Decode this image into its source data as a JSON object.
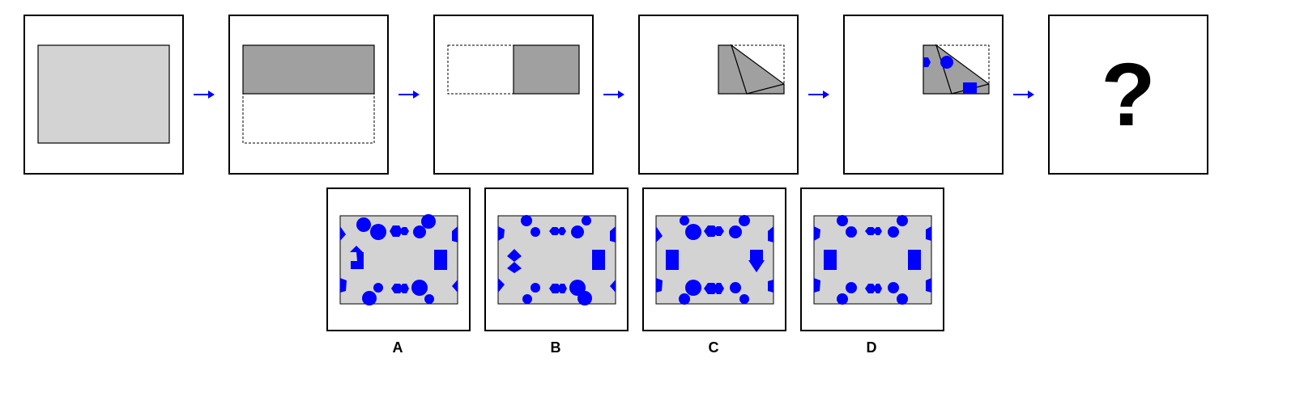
{
  "sequence": {
    "steps": [
      {
        "name": "unfolded-paper"
      },
      {
        "name": "folded-bottom-up"
      },
      {
        "name": "folded-left-to-right"
      },
      {
        "name": "folded-diagonal"
      },
      {
        "name": "punched-holes"
      }
    ],
    "question_mark": "?"
  },
  "options": [
    {
      "label": "A"
    },
    {
      "label": "B"
    },
    {
      "label": "C"
    },
    {
      "label": "D"
    }
  ],
  "colors": {
    "paper_light": "#d3d3d3",
    "paper_dark": "#a0a0a0",
    "hole_blue": "#0000ff",
    "arrow_blue": "#0000ff",
    "border": "#000000"
  },
  "icons": {
    "arrow": "right-arrow-icon"
  }
}
